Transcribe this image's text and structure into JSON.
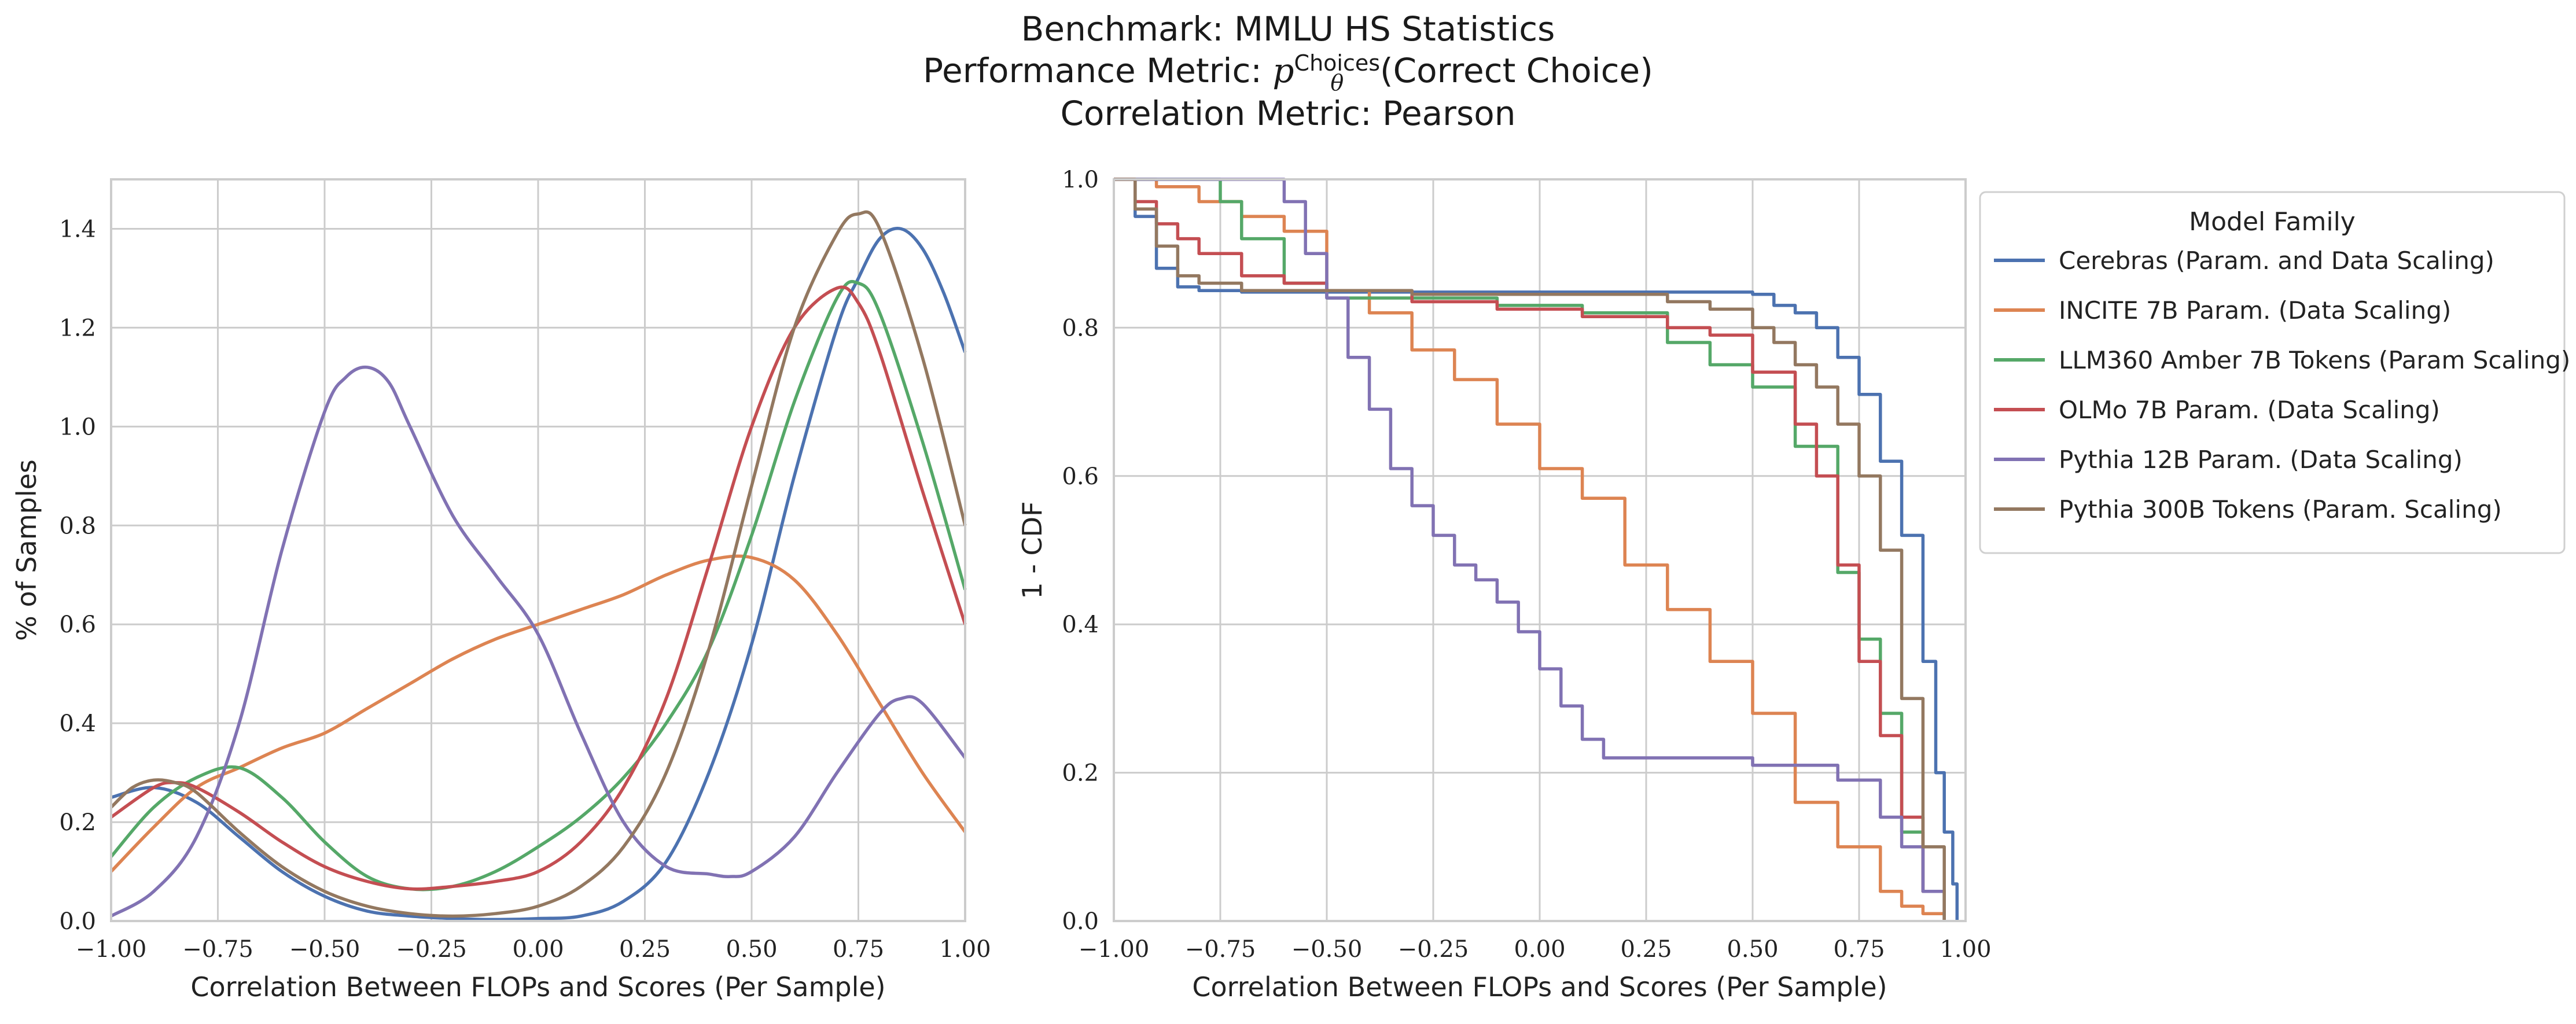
{
  "title": {
    "line1": "Benchmark: MMLU HS Statistics",
    "line2_prefix": "Performance Metric: ",
    "line2_p": "p",
    "line2_sub": "θ",
    "line2_sup": "Choices",
    "line2_suffix": "(Correct Choice)",
    "line3": "Correlation Metric: Pearson"
  },
  "colors": {
    "Cerebras": "#4c72b0",
    "INCITE": "#dd8452",
    "LLM360": "#55a868",
    "OLMo": "#c44e52",
    "Pythia12B": "#8172b3",
    "Pythia300B": "#937860",
    "grid": "#cccccc",
    "frame": "#cccccc"
  },
  "chart_data": [
    {
      "type": "line",
      "xlabel": "Correlation Between FLOPs and Scores (Per Sample)",
      "ylabel": "% of Samples",
      "xlim": [
        -1.0,
        1.0
      ],
      "ylim": [
        0.0,
        1.5
      ],
      "xticks": [
        "−1.00",
        "−0.75",
        "−0.50",
        "−0.25",
        "0.00",
        "0.25",
        "0.50",
        "0.75",
        "1.00"
      ],
      "yticks": [
        "0.0",
        "0.2",
        "0.4",
        "0.6",
        "0.8",
        "1.0",
        "1.2",
        "1.4"
      ],
      "grid": true,
      "series": [
        {
          "key": "Cerebras",
          "x": [
            -1.0,
            -0.9,
            -0.8,
            -0.7,
            -0.6,
            -0.5,
            -0.4,
            -0.3,
            -0.2,
            -0.1,
            0.0,
            0.1,
            0.2,
            0.3,
            0.4,
            0.5,
            0.6,
            0.7,
            0.75,
            0.8,
            0.85,
            0.9,
            0.95,
            1.0
          ],
          "y": [
            0.25,
            0.27,
            0.24,
            0.17,
            0.1,
            0.05,
            0.02,
            0.01,
            0.005,
            0.003,
            0.005,
            0.01,
            0.04,
            0.12,
            0.3,
            0.56,
            0.9,
            1.2,
            1.3,
            1.38,
            1.4,
            1.36,
            1.27,
            1.15
          ]
        },
        {
          "key": "INCITE",
          "x": [
            -1.0,
            -0.9,
            -0.8,
            -0.7,
            -0.6,
            -0.5,
            -0.4,
            -0.3,
            -0.2,
            -0.1,
            0.0,
            0.1,
            0.2,
            0.3,
            0.4,
            0.5,
            0.6,
            0.7,
            0.8,
            0.9,
            1.0
          ],
          "y": [
            0.1,
            0.19,
            0.27,
            0.31,
            0.35,
            0.38,
            0.43,
            0.48,
            0.53,
            0.57,
            0.6,
            0.63,
            0.66,
            0.7,
            0.73,
            0.735,
            0.69,
            0.58,
            0.44,
            0.3,
            0.18
          ]
        },
        {
          "key": "LLM360",
          "x": [
            -1.0,
            -0.9,
            -0.8,
            -0.7,
            -0.6,
            -0.5,
            -0.4,
            -0.3,
            -0.2,
            -0.1,
            0.0,
            0.1,
            0.2,
            0.3,
            0.4,
            0.5,
            0.6,
            0.7,
            0.75,
            0.8,
            0.9,
            1.0
          ],
          "y": [
            0.13,
            0.23,
            0.29,
            0.31,
            0.25,
            0.16,
            0.09,
            0.065,
            0.07,
            0.1,
            0.15,
            0.21,
            0.29,
            0.4,
            0.55,
            0.78,
            1.05,
            1.26,
            1.29,
            1.23,
            0.97,
            0.67
          ]
        },
        {
          "key": "OLMo",
          "x": [
            -1.0,
            -0.9,
            -0.85,
            -0.8,
            -0.7,
            -0.6,
            -0.5,
            -0.4,
            -0.3,
            -0.2,
            -0.1,
            0.0,
            0.1,
            0.2,
            0.3,
            0.4,
            0.5,
            0.6,
            0.7,
            0.75,
            0.8,
            0.9,
            1.0
          ],
          "y": [
            0.21,
            0.27,
            0.28,
            0.27,
            0.22,
            0.16,
            0.11,
            0.08,
            0.065,
            0.07,
            0.08,
            0.1,
            0.16,
            0.27,
            0.45,
            0.72,
            1.0,
            1.2,
            1.28,
            1.25,
            1.15,
            0.87,
            0.6
          ]
        },
        {
          "key": "Pythia12B",
          "x": [
            -1.0,
            -0.9,
            -0.8,
            -0.7,
            -0.6,
            -0.5,
            -0.45,
            -0.4,
            -0.35,
            -0.3,
            -0.2,
            -0.1,
            0.0,
            0.1,
            0.2,
            0.3,
            0.4,
            0.45,
            0.5,
            0.6,
            0.7,
            0.8,
            0.85,
            0.9,
            1.0
          ],
          "y": [
            0.01,
            0.06,
            0.17,
            0.4,
            0.75,
            1.03,
            1.1,
            1.12,
            1.09,
            1.0,
            0.82,
            0.7,
            0.58,
            0.38,
            0.2,
            0.11,
            0.095,
            0.09,
            0.1,
            0.17,
            0.3,
            0.42,
            0.45,
            0.44,
            0.33
          ]
        },
        {
          "key": "Pythia300B",
          "x": [
            -1.0,
            -0.95,
            -0.9,
            -0.85,
            -0.8,
            -0.7,
            -0.6,
            -0.5,
            -0.4,
            -0.3,
            -0.2,
            -0.1,
            0.0,
            0.1,
            0.2,
            0.3,
            0.4,
            0.5,
            0.6,
            0.7,
            0.75,
            0.8,
            0.9,
            1.0
          ],
          "y": [
            0.23,
            0.27,
            0.285,
            0.28,
            0.26,
            0.18,
            0.11,
            0.06,
            0.03,
            0.015,
            0.01,
            0.015,
            0.03,
            0.07,
            0.15,
            0.3,
            0.55,
            0.88,
            1.2,
            1.39,
            1.43,
            1.4,
            1.14,
            0.8
          ]
        }
      ]
    },
    {
      "type": "line",
      "step": true,
      "xlabel": "Correlation Between FLOPs and Scores (Per Sample)",
      "ylabel": "1 - CDF",
      "xlim": [
        -1.0,
        1.0
      ],
      "ylim": [
        0.0,
        1.0
      ],
      "xticks": [
        "−1.00",
        "−0.75",
        "−0.50",
        "−0.25",
        "0.00",
        "0.25",
        "0.50",
        "0.75",
        "1.00"
      ],
      "yticks": [
        "0.0",
        "0.2",
        "0.4",
        "0.6",
        "0.8",
        "1.0"
      ],
      "grid": true,
      "series": [
        {
          "key": "Cerebras",
          "x": [
            -1.0,
            -0.95,
            -0.9,
            -0.85,
            -0.8,
            -0.7,
            -0.5,
            -0.3,
            0.0,
            0.3,
            0.5,
            0.55,
            0.6,
            0.65,
            0.7,
            0.75,
            0.8,
            0.85,
            0.9,
            0.93,
            0.95,
            0.97,
            0.98
          ],
          "y": [
            1.0,
            0.95,
            0.88,
            0.855,
            0.85,
            0.848,
            0.848,
            0.848,
            0.848,
            0.848,
            0.845,
            0.83,
            0.82,
            0.8,
            0.76,
            0.71,
            0.62,
            0.52,
            0.35,
            0.2,
            0.12,
            0.05,
            0.0
          ]
        },
        {
          "key": "INCITE",
          "x": [
            -1.0,
            -0.9,
            -0.8,
            -0.7,
            -0.6,
            -0.5,
            -0.4,
            -0.3,
            -0.2,
            -0.1,
            0.0,
            0.1,
            0.2,
            0.3,
            0.4,
            0.5,
            0.6,
            0.7,
            0.8,
            0.85,
            0.9,
            0.95
          ],
          "y": [
            1.0,
            0.99,
            0.97,
            0.95,
            0.93,
            0.85,
            0.82,
            0.77,
            0.73,
            0.67,
            0.61,
            0.57,
            0.48,
            0.42,
            0.35,
            0.28,
            0.16,
            0.1,
            0.04,
            0.02,
            0.01,
            0.0
          ]
        },
        {
          "key": "LLM360",
          "x": [
            -1.0,
            -0.8,
            -0.75,
            -0.7,
            -0.6,
            -0.5,
            -0.3,
            -0.1,
            0.1,
            0.3,
            0.4,
            0.5,
            0.6,
            0.7,
            0.75,
            0.8,
            0.85,
            0.9,
            0.95
          ],
          "y": [
            1.0,
            1.0,
            0.97,
            0.92,
            0.86,
            0.84,
            0.84,
            0.83,
            0.82,
            0.78,
            0.75,
            0.72,
            0.64,
            0.47,
            0.38,
            0.28,
            0.12,
            0.04,
            0.0
          ]
        },
        {
          "key": "OLMo",
          "x": [
            -1.0,
            -0.95,
            -0.9,
            -0.85,
            -0.8,
            -0.7,
            -0.6,
            -0.5,
            -0.3,
            -0.1,
            0.1,
            0.3,
            0.4,
            0.5,
            0.6,
            0.65,
            0.7,
            0.75,
            0.8,
            0.85,
            0.9,
            0.95
          ],
          "y": [
            1.0,
            0.97,
            0.94,
            0.92,
            0.9,
            0.87,
            0.86,
            0.85,
            0.835,
            0.825,
            0.815,
            0.8,
            0.79,
            0.74,
            0.67,
            0.6,
            0.48,
            0.35,
            0.25,
            0.14,
            0.04,
            0.0
          ]
        },
        {
          "key": "Pythia12B",
          "x": [
            -1.0,
            -0.7,
            -0.6,
            -0.55,
            -0.5,
            -0.45,
            -0.4,
            -0.35,
            -0.3,
            -0.25,
            -0.2,
            -0.15,
            -0.1,
            -0.05,
            0.0,
            0.05,
            0.1,
            0.15,
            0.3,
            0.5,
            0.6,
            0.7,
            0.8,
            0.85,
            0.9,
            0.95
          ],
          "y": [
            1.0,
            1.0,
            0.97,
            0.9,
            0.84,
            0.76,
            0.69,
            0.61,
            0.56,
            0.52,
            0.48,
            0.46,
            0.43,
            0.39,
            0.34,
            0.29,
            0.245,
            0.22,
            0.22,
            0.21,
            0.21,
            0.19,
            0.14,
            0.1,
            0.04,
            0.0
          ]
        },
        {
          "key": "Pythia300B",
          "x": [
            -1.0,
            -0.95,
            -0.9,
            -0.85,
            -0.8,
            -0.7,
            -0.5,
            -0.3,
            -0.1,
            0.1,
            0.3,
            0.4,
            0.5,
            0.55,
            0.6,
            0.65,
            0.7,
            0.75,
            0.8,
            0.85,
            0.9,
            0.95
          ],
          "y": [
            1.0,
            0.96,
            0.91,
            0.87,
            0.86,
            0.85,
            0.85,
            0.845,
            0.845,
            0.845,
            0.835,
            0.825,
            0.8,
            0.78,
            0.75,
            0.72,
            0.67,
            0.6,
            0.5,
            0.3,
            0.1,
            0.0
          ]
        }
      ]
    }
  ],
  "legend": {
    "title": "Model Family",
    "placement": "outside-right",
    "entries": [
      {
        "key": "Cerebras",
        "label": "Cerebras (Param. and Data Scaling)"
      },
      {
        "key": "INCITE",
        "label": "INCITE 7B Param. (Data Scaling)"
      },
      {
        "key": "LLM360",
        "label": "LLM360 Amber 7B Tokens (Param Scaling)"
      },
      {
        "key": "OLMo",
        "label": "OLMo 7B Param. (Data Scaling)"
      },
      {
        "key": "Pythia12B",
        "label": "Pythia 12B Param. (Data Scaling)"
      },
      {
        "key": "Pythia300B",
        "label": "Pythia 300B Tokens (Param. Scaling)"
      }
    ]
  }
}
